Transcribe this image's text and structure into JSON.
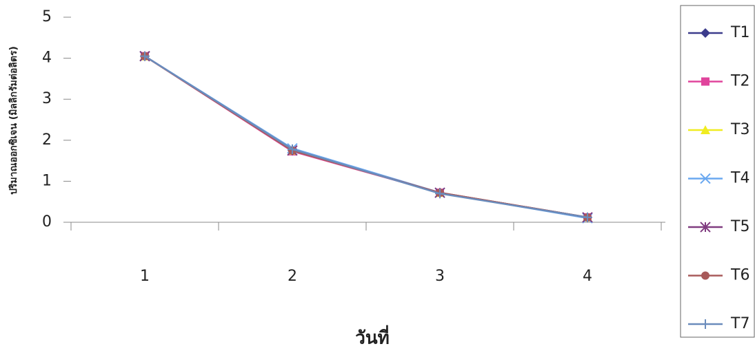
{
  "chart_data": {
    "type": "line",
    "x_label": "วันที่",
    "y_label": "ปริมาณออกซิเจน (มิลลิกรัมต่อลิตร)",
    "categories": [
      "1",
      "2",
      "3",
      "4"
    ],
    "ylim": [
      0,
      5
    ],
    "yticks": [
      0,
      1,
      2,
      3,
      4,
      5
    ],
    "grid": false,
    "legend": "right",
    "series": [
      {
        "name": "T1",
        "color": "#3c3c8c",
        "marker": "diamond",
        "values": [
          4.05,
          1.75,
          0.72,
          0.12
        ]
      },
      {
        "name": "T2",
        "color": "#e0449c",
        "marker": "square",
        "values": [
          4.05,
          1.73,
          0.72,
          0.12
        ]
      },
      {
        "name": "T3",
        "color": "#f0ec20",
        "marker": "triangle",
        "values": [
          4.05,
          1.75,
          0.72,
          0.12
        ]
      },
      {
        "name": "T4",
        "color": "#6aa8f0",
        "marker": "x",
        "values": [
          4.05,
          1.8,
          0.72,
          0.1
        ]
      },
      {
        "name": "T5",
        "color": "#803c80",
        "marker": "star",
        "values": [
          4.05,
          1.75,
          0.72,
          0.12
        ]
      },
      {
        "name": "T6",
        "color": "#a85a5a",
        "marker": "circle",
        "values": [
          4.05,
          1.75,
          0.72,
          0.12
        ]
      },
      {
        "name": "T7",
        "color": "#6a8cbc",
        "marker": "plus",
        "values": [
          4.05,
          1.78,
          0.7,
          0.12
        ]
      }
    ]
  }
}
